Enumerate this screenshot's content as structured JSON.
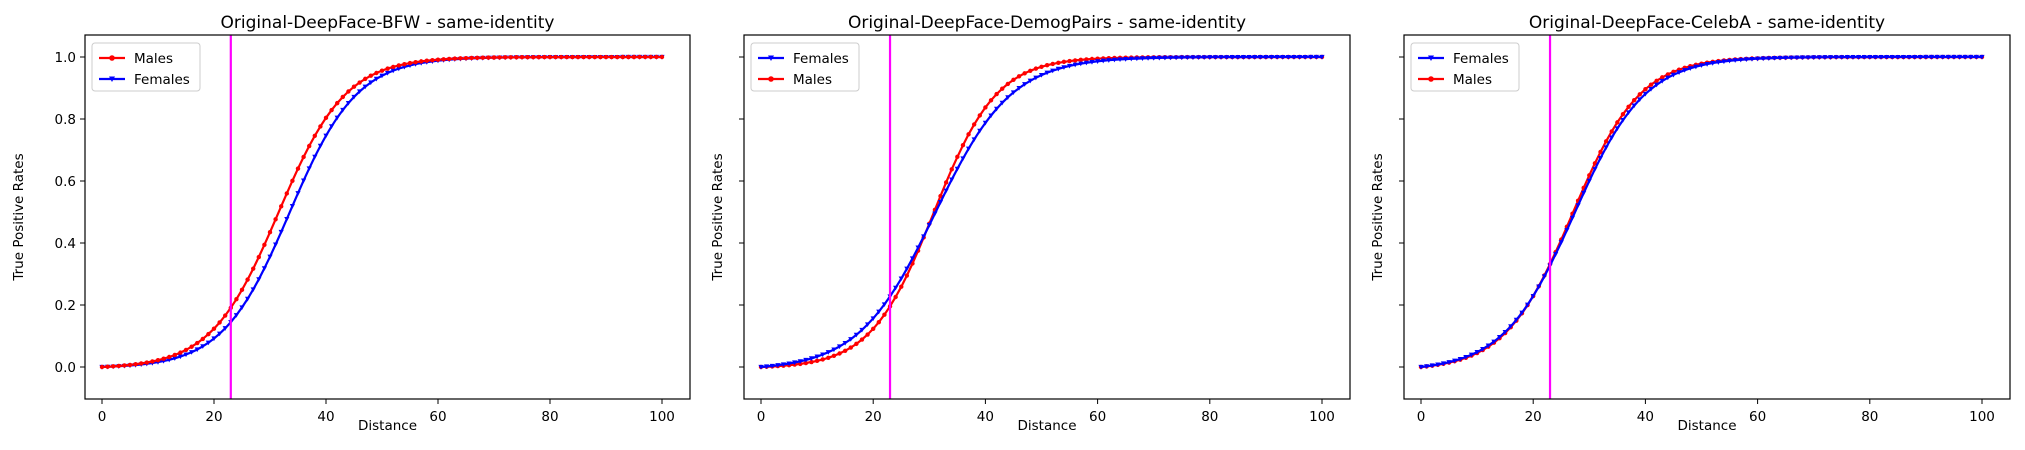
{
  "chart_data": [
    {
      "type": "line",
      "title": "Original-DeepFace-BFW - same-identity",
      "xlabel": "Distance",
      "ylabel": "True Positive Rates",
      "xlim": [
        0,
        100
      ],
      "ylim": [
        0,
        1
      ],
      "xticks": [
        "0",
        "20",
        "40",
        "60",
        "80",
        "100"
      ],
      "yticks": [
        "0.0",
        "0.2",
        "0.4",
        "0.6",
        "0.8",
        "1.0"
      ],
      "threshold": 23,
      "threshold_color": "#ff00ff",
      "legend_position": "upper-left",
      "series": [
        {
          "name": "Males",
          "color": "#ff0000",
          "marker": "circle",
          "mu": 31.5,
          "s": 6.0
        },
        {
          "name": "Females",
          "color": "#0000ff",
          "marker": "triangle-down",
          "mu": 33.5,
          "s": 6.0
        }
      ]
    },
    {
      "type": "line",
      "title": "Original-DeepFace-DemogPairs - same-identity",
      "xlabel": "Distance",
      "ylabel": "True Positive Rates",
      "xlim": [
        0,
        100
      ],
      "ylim": [
        0,
        1
      ],
      "xticks": [
        "0",
        "20",
        "40",
        "60",
        "80",
        "100"
      ],
      "yticks": [],
      "threshold": 23,
      "threshold_color": "#ff00ff",
      "legend_position": "upper-left",
      "series": [
        {
          "name": "Females",
          "color": "#0000ff",
          "marker": "triangle-down",
          "mu": 31.0,
          "s": 6.8
        },
        {
          "name": "Males",
          "color": "#ff0000",
          "marker": "circle",
          "mu": 30.8,
          "s": 5.6
        }
      ]
    },
    {
      "type": "line",
      "title": "Original-DeepFace-CelebA - same-identity",
      "xlabel": "Distance",
      "ylabel": "True Positive Rates",
      "xlim": [
        0,
        100
      ],
      "ylim": [
        0,
        1
      ],
      "xticks": [
        "0",
        "20",
        "40",
        "60",
        "80",
        "100"
      ],
      "yticks": [],
      "threshold": 23,
      "threshold_color": "#ff00ff",
      "legend_position": "upper-left",
      "series": [
        {
          "name": "Females",
          "color": "#0000ff",
          "marker": "triangle-down",
          "mu": 27.3,
          "s": 6.3
        },
        {
          "name": "Males",
          "color": "#ff0000",
          "marker": "circle",
          "mu": 27.0,
          "s": 6.0
        }
      ]
    }
  ]
}
